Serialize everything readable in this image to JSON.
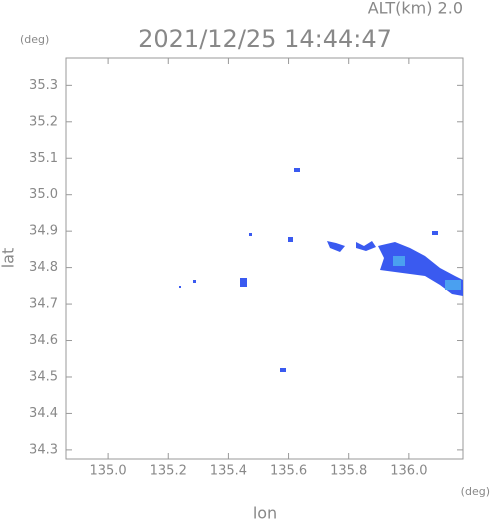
{
  "chart_data": {
    "type": "map",
    "title": "2021/12/25 14:44:47",
    "altitude_label": "ALT(km) 2.0",
    "y_unit": "(deg)",
    "x_unit": "(deg)",
    "xlabel": "lon",
    "ylabel": "lat",
    "xlim": [
      134.86,
      136.18
    ],
    "ylim": [
      34.275,
      35.375
    ],
    "xticks": [
      {
        "value": 135.0,
        "label": "135.0"
      },
      135.2,
      135.4,
      135.6,
      135.8,
      {
        "value": 136.0,
        "label": "136.0"
      }
    ],
    "yticks": [
      34.3,
      34.4,
      34.5,
      34.6,
      34.7,
      34.8,
      34.9,
      {
        "value": 35.0,
        "label": "35.0"
      },
      35.1,
      35.2,
      35.3
    ]
  }
}
